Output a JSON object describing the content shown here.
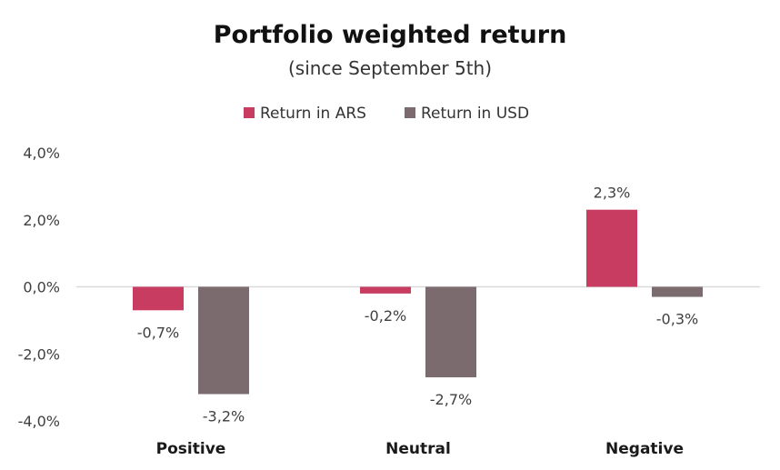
{
  "chart_data": {
    "type": "bar",
    "title": "Portfolio weighted return",
    "subtitle": "(since September 5th)",
    "categories": [
      "Positive",
      "Neutral",
      "Negative"
    ],
    "series": [
      {
        "name": "Return in ARS",
        "color": "#c83c61",
        "values": [
          -0.7,
          -0.2,
          2.3
        ],
        "labels": [
          "-0,7%",
          "-0,2%",
          "2,3%"
        ]
      },
      {
        "name": "Return in USD",
        "color": "#7b6b6e",
        "values": [
          -3.2,
          -2.7,
          -0.3
        ],
        "labels": [
          "-3,2%",
          "-2,7%",
          "-0,3%"
        ]
      }
    ],
    "ylim": [
      -4,
      4
    ],
    "yticks": [
      4,
      2,
      0,
      -2,
      -4
    ],
    "ytick_labels": [
      "4,0%",
      "2,0%",
      "0,0%",
      "-2,0%",
      "-4,0%"
    ],
    "legend_position": "top-center",
    "grid": false,
    "xlabel": "",
    "ylabel": ""
  }
}
